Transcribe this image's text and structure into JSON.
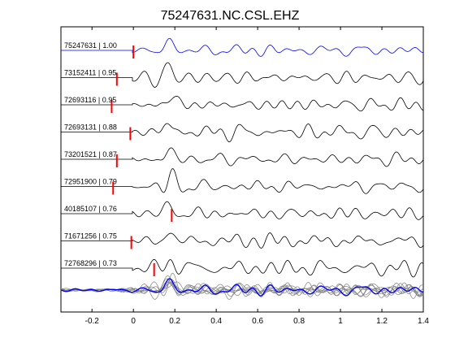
{
  "chart_data": {
    "type": "line",
    "title": "75247631.NC.CSL.EHZ",
    "xlabel": "",
    "ylabel": "",
    "xlim": [
      -0.35,
      1.4
    ],
    "xticks": [
      -0.2,
      0,
      0.2,
      0.4,
      0.6,
      0.8,
      1,
      1.2,
      1.4
    ],
    "xtick_labels": [
      "-0.2",
      "0",
      "0.2",
      "0.4",
      "0.6",
      "0.8",
      "1",
      "1.2",
      "1.4"
    ],
    "grid": false,
    "legend": "none",
    "reference_color": "#0000ff",
    "trace_color": "#000000",
    "pick_color": "#ff0000",
    "stack_color": "#808080",
    "traces": [
      {
        "label": "75247631 | 1.00",
        "id": "75247631",
        "cc": 1.0,
        "pick_time": 0.0,
        "reference": true
      },
      {
        "label": "73152411 | 0.95",
        "id": "73152411",
        "cc": 0.95,
        "pick_time": -0.08,
        "reference": false
      },
      {
        "label": "72693116 | 0.95",
        "id": "72693116",
        "cc": 0.95,
        "pick_time": -0.105,
        "reference": false
      },
      {
        "label": "72693131 | 0.88",
        "id": "72693131",
        "cc": 0.88,
        "pick_time": -0.015,
        "reference": false
      },
      {
        "label": "73201521 | 0.87",
        "id": "73201521",
        "cc": 0.87,
        "pick_time": -0.08,
        "reference": false
      },
      {
        "label": "72951900 | 0.79",
        "id": "72951900",
        "cc": 0.79,
        "pick_time": -0.098,
        "reference": false
      },
      {
        "label": "40185107 | 0.76",
        "id": "40185107",
        "cc": 0.76,
        "pick_time": 0.185,
        "reference": false
      },
      {
        "label": "71671256 | 0.75",
        "id": "71671256",
        "cc": 0.75,
        "pick_time": -0.01,
        "reference": false
      },
      {
        "label": "72768296 | 0.73",
        "id": "72768296",
        "cc": 0.73,
        "pick_time": 0.1,
        "reference": false
      }
    ],
    "stack": {
      "n_overlays": 8,
      "includes_reference": true
    }
  }
}
